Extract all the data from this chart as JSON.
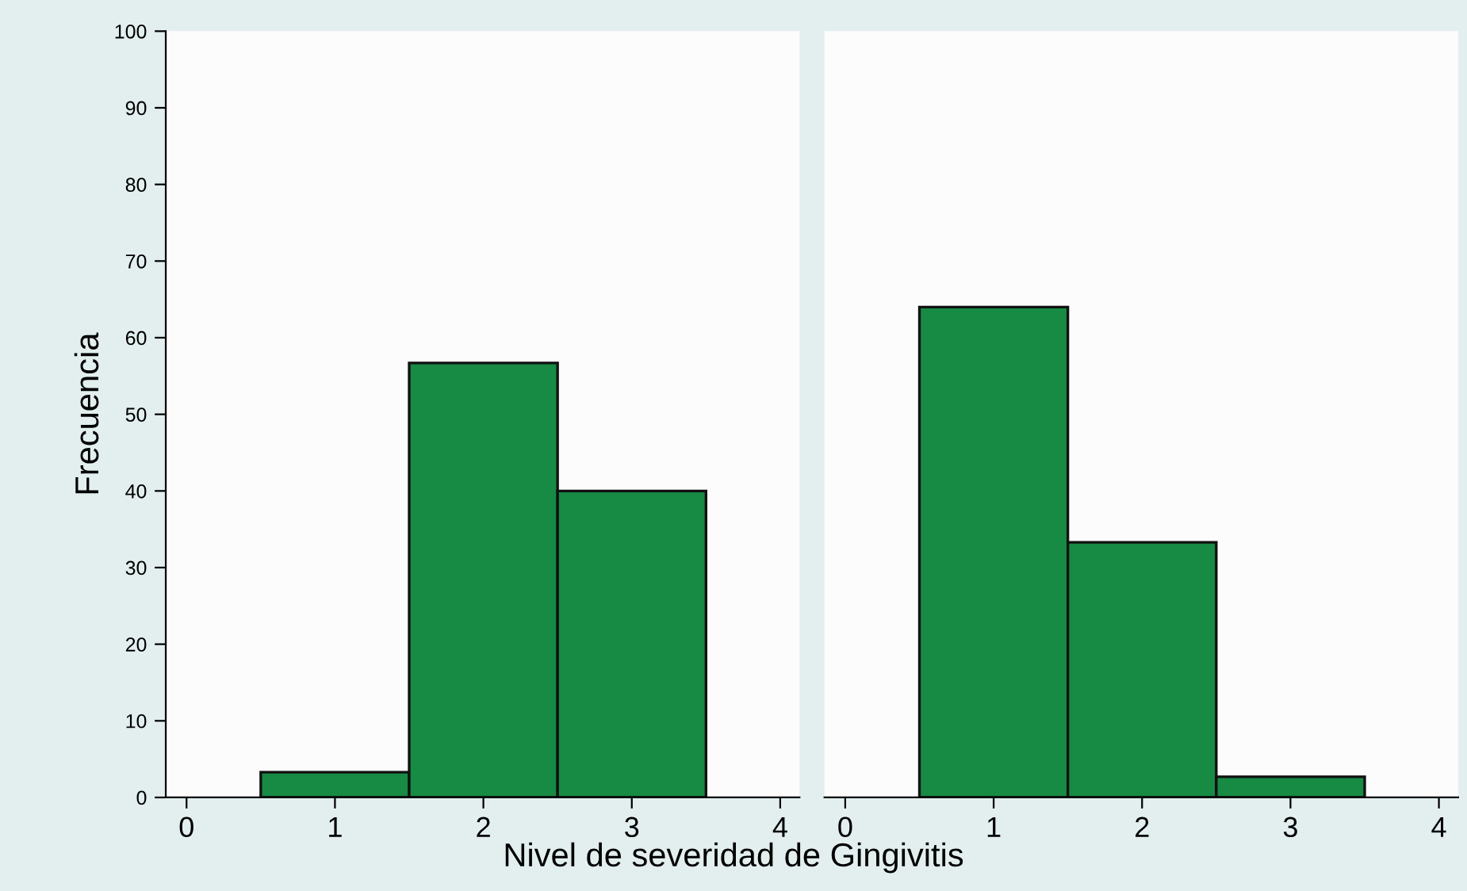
{
  "chart_data": [
    {
      "type": "histogram",
      "ylabel": "Frecuencia",
      "xlabel": "Nivel de severidad de Gingivitis",
      "bins": [
        0.5,
        1.5,
        2.5,
        3.5
      ],
      "values": [
        3.3,
        56.7,
        40.0
      ],
      "color": "#178a44",
      "xlim": [
        -0.14,
        4.13
      ],
      "xticks": [
        0,
        1,
        2,
        3,
        4
      ],
      "ylim": [
        0,
        100
      ],
      "yticks": [
        0,
        10,
        20,
        30,
        40,
        50,
        60,
        70,
        80,
        90,
        100
      ],
      "grid": false
    },
    {
      "type": "histogram",
      "bins": [
        0.5,
        1.5,
        2.5,
        3.5
      ],
      "values": [
        64.0,
        33.3,
        2.7
      ],
      "color": "#178a44",
      "xlim": [
        -0.14,
        4.13
      ],
      "xticks": [
        0,
        1,
        2,
        3,
        4
      ],
      "ylim": [
        0,
        100
      ],
      "yticks": [
        0,
        10,
        20,
        30,
        40,
        50,
        60,
        70,
        80,
        90,
        100
      ],
      "tick_labels": "x",
      "grid": false
    }
  ]
}
